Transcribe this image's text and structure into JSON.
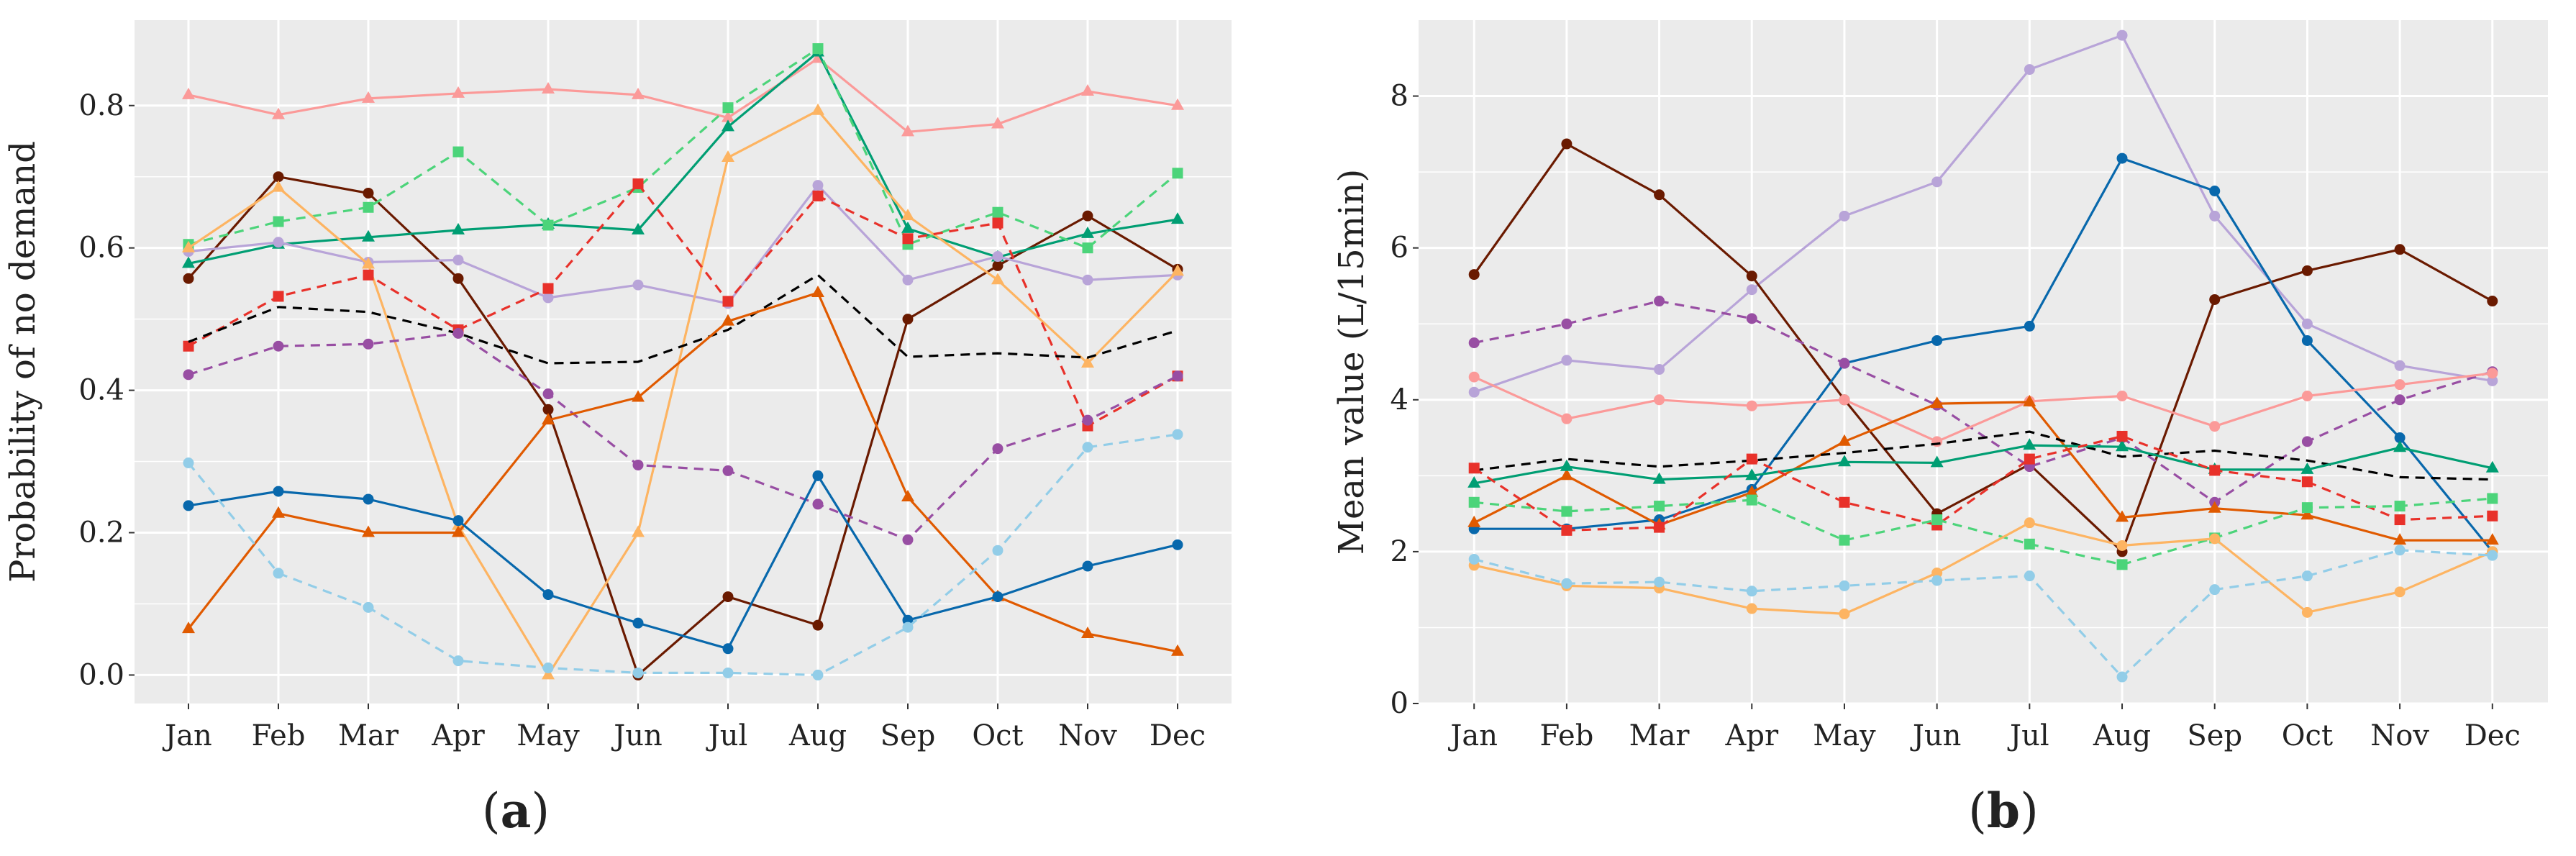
{
  "chart_data": [
    {
      "type": "line",
      "panel_label_open": "(",
      "panel_label_letter": "a",
      "panel_label_close": ")",
      "title": "",
      "xlabel": "",
      "ylabel": "Probability of no demand",
      "categories": [
        "Jan",
        "Feb",
        "Mar",
        "Apr",
        "May",
        "Jun",
        "Jul",
        "Aug",
        "Sep",
        "Oct",
        "Nov",
        "Dec"
      ],
      "ylim": [
        -0.04,
        0.92
      ],
      "yticks": [
        0.0,
        0.2,
        0.4,
        0.6,
        0.8
      ],
      "ytick_labels": [
        "0.0",
        "0.2",
        "0.4",
        "0.6",
        "0.8"
      ],
      "grid": true,
      "series": [
        {
          "name": "pink",
          "color": "#fb9a99",
          "dash": false,
          "marker": "triangle",
          "values": [
            0.815,
            0.787,
            0.81,
            0.817,
            0.823,
            0.815,
            0.783,
            0.866,
            0.763,
            0.774,
            0.82,
            0.8
          ]
        },
        {
          "name": "brown",
          "color": "#6a1a00",
          "dash": false,
          "marker": "circle",
          "values": [
            0.557,
            0.7,
            0.677,
            0.557,
            0.373,
            0.0,
            0.11,
            0.07,
            0.5,
            0.575,
            0.645,
            0.57
          ]
        },
        {
          "name": "teal",
          "color": "#009e73",
          "dash": false,
          "marker": "triangle",
          "values": [
            0.578,
            0.605,
            0.615,
            0.625,
            0.633,
            0.625,
            0.77,
            0.875,
            0.627,
            0.587,
            0.62,
            0.64
          ]
        },
        {
          "name": "light-green",
          "color": "#4cd47a",
          "dash": true,
          "marker": "square",
          "values": [
            0.605,
            0.637,
            0.657,
            0.735,
            0.632,
            0.685,
            0.797,
            0.88,
            0.605,
            0.65,
            0.6,
            0.705
          ]
        },
        {
          "name": "lavender",
          "color": "#b8a4d8",
          "dash": false,
          "marker": "circle",
          "values": [
            0.595,
            0.608,
            0.58,
            0.583,
            0.53,
            0.548,
            0.522,
            0.688,
            0.555,
            0.588,
            0.555,
            0.562
          ]
        },
        {
          "name": "light-orange",
          "color": "#fdb462",
          "dash": false,
          "marker": "triangle",
          "values": [
            0.6,
            0.685,
            0.577,
            0.21,
            0.0,
            0.2,
            0.727,
            0.793,
            0.645,
            0.555,
            0.438,
            0.567
          ]
        },
        {
          "name": "red",
          "color": "#e8312a",
          "dash": true,
          "marker": "square",
          "values": [
            0.462,
            0.532,
            0.562,
            0.485,
            0.543,
            0.69,
            0.525,
            0.673,
            0.613,
            0.635,
            0.35,
            0.42
          ]
        },
        {
          "name": "black",
          "color": "#000000",
          "dash": true,
          "marker": "none",
          "values": [
            0.468,
            0.517,
            0.51,
            0.48,
            0.438,
            0.44,
            0.485,
            0.562,
            0.447,
            0.452,
            0.446,
            0.484
          ]
        },
        {
          "name": "purple",
          "color": "#984ea3",
          "dash": true,
          "marker": "circle",
          "values": [
            0.422,
            0.462,
            0.465,
            0.48,
            0.395,
            0.295,
            0.287,
            0.24,
            0.19,
            0.318,
            0.358,
            0.42
          ]
        },
        {
          "name": "orange",
          "color": "#e05a00",
          "dash": false,
          "marker": "triangle",
          "values": [
            0.065,
            0.227,
            0.2,
            0.2,
            0.358,
            0.39,
            0.497,
            0.537,
            0.25,
            0.11,
            0.058,
            0.033
          ]
        },
        {
          "name": "blue",
          "color": "#0868ac",
          "dash": false,
          "marker": "circle",
          "values": [
            0.238,
            0.258,
            0.247,
            0.217,
            0.113,
            0.073,
            0.037,
            0.28,
            0.077,
            0.11,
            0.153,
            0.183
          ]
        },
        {
          "name": "light-blue",
          "color": "#92cde8",
          "dash": true,
          "marker": "circle",
          "values": [
            0.298,
            0.143,
            0.095,
            0.02,
            0.01,
            0.003,
            0.003,
            0.0,
            0.067,
            0.175,
            0.32,
            0.338
          ]
        }
      ]
    },
    {
      "type": "line",
      "panel_label_open": "(",
      "panel_label_letter": "b",
      "panel_label_close": ")",
      "title": "",
      "xlabel": "",
      "ylabel": "Mean value (L/15min)",
      "categories": [
        "Jan",
        "Feb",
        "Mar",
        "Apr",
        "May",
        "Jun",
        "Jul",
        "Aug",
        "Sep",
        "Oct",
        "Nov",
        "Dec"
      ],
      "ylim": [
        0,
        9.0
      ],
      "yticks": [
        0,
        2,
        4,
        6,
        8
      ],
      "ytick_labels": [
        "0",
        "2",
        "4",
        "6",
        "8"
      ],
      "grid": true,
      "series": [
        {
          "name": "lavender",
          "color": "#b8a4d8",
          "dash": false,
          "marker": "circle",
          "values": [
            4.1,
            4.52,
            4.4,
            5.45,
            6.42,
            6.87,
            8.35,
            8.8,
            6.42,
            5.0,
            4.45,
            4.25
          ]
        },
        {
          "name": "brown",
          "color": "#6a1a00",
          "dash": false,
          "marker": "circle",
          "values": [
            5.65,
            7.37,
            6.7,
            5.63,
            4.0,
            2.5,
            3.15,
            2.0,
            5.32,
            5.7,
            5.98,
            5.3
          ]
        },
        {
          "name": "blue",
          "color": "#0868ac",
          "dash": false,
          "marker": "circle",
          "values": [
            2.3,
            2.3,
            2.42,
            2.82,
            4.48,
            4.78,
            4.97,
            7.18,
            6.75,
            4.78,
            3.5,
            2.0
          ]
        },
        {
          "name": "purple",
          "color": "#984ea3",
          "dash": true,
          "marker": "circle",
          "values": [
            4.75,
            5.0,
            5.3,
            5.07,
            4.48,
            3.93,
            3.12,
            3.5,
            2.65,
            3.45,
            4.0,
            4.37
          ]
        },
        {
          "name": "pink",
          "color": "#fb9a99",
          "dash": false,
          "marker": "circle",
          "values": [
            4.3,
            3.75,
            4.0,
            3.92,
            4.0,
            3.45,
            3.98,
            4.05,
            3.65,
            4.05,
            4.2,
            4.35
          ]
        },
        {
          "name": "orange",
          "color": "#e05a00",
          "dash": false,
          "marker": "triangle",
          "values": [
            2.38,
            3.0,
            2.35,
            2.78,
            3.45,
            3.95,
            3.97,
            2.45,
            2.57,
            2.48,
            2.15,
            2.15
          ]
        },
        {
          "name": "black",
          "color": "#000000",
          "dash": true,
          "marker": "none",
          "values": [
            3.07,
            3.22,
            3.12,
            3.2,
            3.3,
            3.42,
            3.58,
            3.25,
            3.33,
            3.2,
            2.98,
            2.95
          ]
        },
        {
          "name": "teal",
          "color": "#009e73",
          "dash": false,
          "marker": "triangle",
          "values": [
            2.9,
            3.12,
            2.95,
            3.0,
            3.18,
            3.17,
            3.4,
            3.38,
            3.08,
            3.08,
            3.37,
            3.1
          ]
        },
        {
          "name": "red",
          "color": "#e8312a",
          "dash": true,
          "marker": "square",
          "values": [
            3.1,
            2.28,
            2.32,
            3.22,
            2.65,
            2.35,
            3.22,
            3.52,
            3.07,
            2.92,
            2.42,
            2.47
          ]
        },
        {
          "name": "light-green",
          "color": "#4cd47a",
          "dash": true,
          "marker": "square",
          "values": [
            2.65,
            2.53,
            2.6,
            2.68,
            2.15,
            2.42,
            2.1,
            1.83,
            2.18,
            2.58,
            2.6,
            2.7
          ]
        },
        {
          "name": "light-orange",
          "color": "#fdb462",
          "dash": false,
          "marker": "circle",
          "values": [
            1.82,
            1.55,
            1.52,
            1.25,
            1.18,
            1.72,
            2.38,
            2.08,
            2.17,
            1.2,
            1.47,
            2.0
          ]
        },
        {
          "name": "light-blue",
          "color": "#92cde8",
          "dash": true,
          "marker": "circle",
          "values": [
            1.9,
            1.58,
            1.6,
            1.48,
            1.55,
            1.62,
            1.68,
            0.35,
            1.5,
            1.68,
            2.02,
            1.95
          ]
        }
      ]
    }
  ]
}
